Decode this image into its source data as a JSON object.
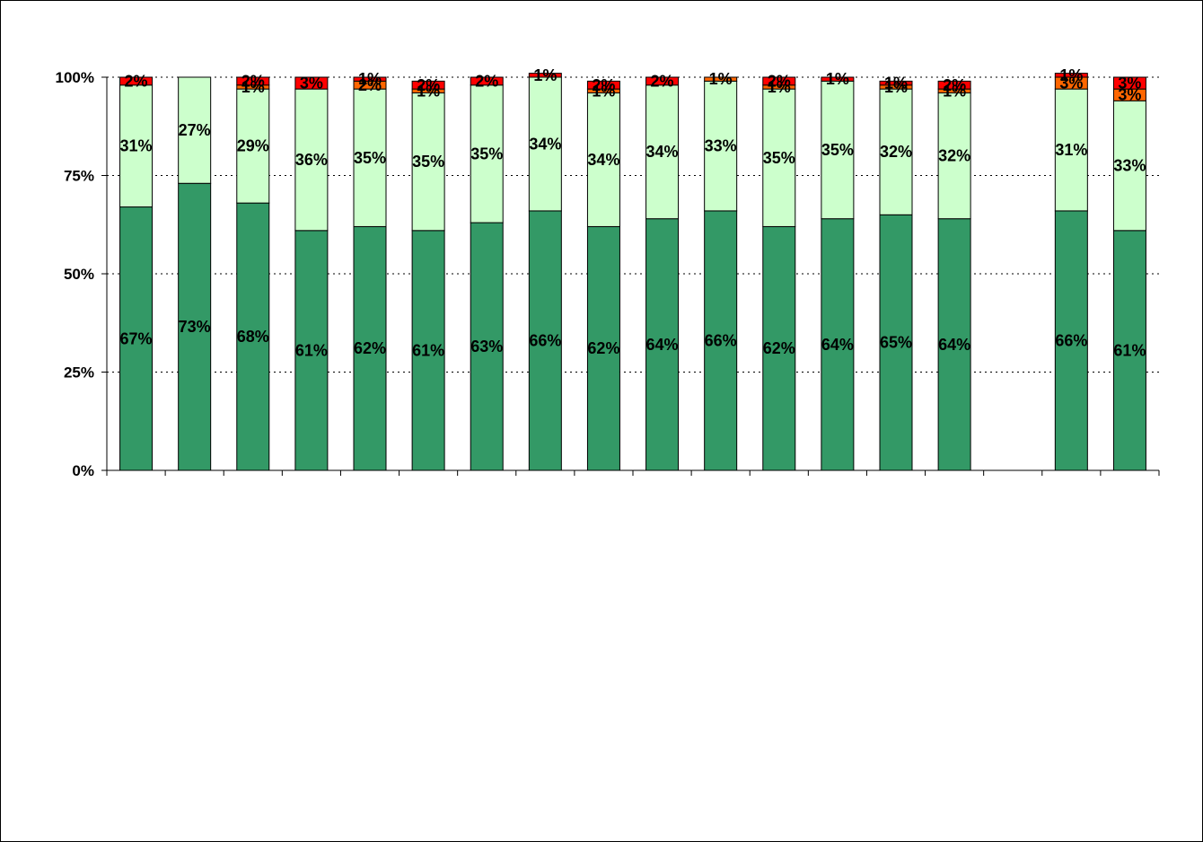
{
  "chart_data": {
    "type": "bar",
    "stacked": "percent",
    "title": "",
    "xlabel": "",
    "ylabel": "",
    "ylim": [
      0,
      100
    ],
    "y_ticks": [
      "0%",
      "25%",
      "50%",
      "75%",
      "100%"
    ],
    "grid": "horizontal dotted",
    "legend": "none",
    "categories": [
      "",
      "",
      "",
      "",
      "",
      "",
      "",
      "",
      "",
      "",
      "",
      "",
      "",
      "",
      "",
      "",
      "",
      ""
    ],
    "series": [
      {
        "color": "#339966",
        "values": [
          67,
          73,
          68,
          61,
          62,
          61,
          63,
          66,
          62,
          64,
          66,
          62,
          64,
          65,
          64,
          0,
          66,
          61
        ]
      },
      {
        "color": "#CCFFCC",
        "values": [
          31,
          27,
          29,
          36,
          35,
          35,
          35,
          34,
          34,
          34,
          33,
          35,
          35,
          32,
          32,
          0,
          31,
          33
        ]
      },
      {
        "color": "#FF6600",
        "values": [
          0,
          0,
          1,
          0,
          2,
          1,
          0,
          0,
          1,
          0,
          1,
          1,
          0,
          1,
          1,
          0,
          3,
          3
        ]
      },
      {
        "color": "#FF0000",
        "values": [
          2,
          0,
          2,
          3,
          1,
          2,
          2,
          1,
          2,
          2,
          0,
          2,
          1,
          1,
          2,
          0,
          1,
          3
        ]
      }
    ],
    "data_labels": [
      [
        "67%",
        "31%",
        "",
        "2%"
      ],
      [
        "73%",
        "27%",
        "",
        ""
      ],
      [
        "68%",
        "29%",
        "1%",
        "2%"
      ],
      [
        "61%",
        "36%",
        "",
        "3%"
      ],
      [
        "62%",
        "35%",
        "2%",
        "1%"
      ],
      [
        "61%",
        "35%",
        "1%",
        "2%"
      ],
      [
        "63%",
        "35%",
        "",
        "2%"
      ],
      [
        "66%",
        "34%",
        "",
        "1%"
      ],
      [
        "62%",
        "34%",
        "1%",
        "2%"
      ],
      [
        "64%",
        "34%",
        "",
        "2%"
      ],
      [
        "66%",
        "33%",
        "1%",
        ""
      ],
      [
        "62%",
        "35%",
        "1%",
        "2%"
      ],
      [
        "64%",
        "35%",
        "",
        "1%"
      ],
      [
        "65%",
        "32%",
        "1%",
        "1%"
      ],
      [
        "64%",
        "32%",
        "1%",
        "2%"
      ],
      [
        "",
        "",
        "",
        ""
      ],
      [
        "66%",
        "31%",
        "3%",
        "1%"
      ],
      [
        "61%",
        "33%",
        "3%",
        "3%"
      ]
    ]
  }
}
